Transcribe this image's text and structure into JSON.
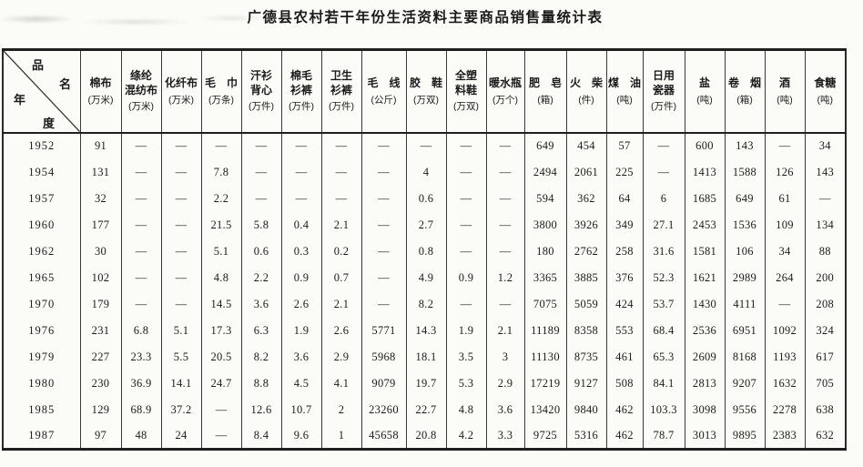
{
  "title": "广德县农村若干年份生活资料主要商品销售量统计表",
  "table": {
    "corner": {
      "top_label": "品名",
      "bottom_label": "年度"
    },
    "columns": [
      {
        "id": "cotton-cloth",
        "name_lines": [
          "棉布"
        ],
        "unit": "(万米)"
      },
      {
        "id": "polyester-blend-cloth",
        "name_lines": [
          "绦纶",
          "混纺布"
        ],
        "unit": "(万米)"
      },
      {
        "id": "chemical-fiber-cloth",
        "name_lines": [
          "化纤布"
        ],
        "unit": "(万米)"
      },
      {
        "id": "towel",
        "name_lines": [
          "毛　巾"
        ],
        "unit": "(万条)"
      },
      {
        "id": "undershirt-vest",
        "name_lines": [
          "汗衫",
          "背心"
        ],
        "unit": "(万件)"
      },
      {
        "id": "cotton-knit-suit",
        "name_lines": [
          "棉毛",
          "衫裤"
        ],
        "unit": "(万件)"
      },
      {
        "id": "sanitary-knit-suit",
        "name_lines": [
          "卫生",
          "衫裤"
        ],
        "unit": "(万件)"
      },
      {
        "id": "knitting-wool",
        "name_lines": [
          "毛　线"
        ],
        "unit": "(公斤)"
      },
      {
        "id": "rubber-shoes",
        "name_lines": [
          "胶　鞋"
        ],
        "unit": "(万双)"
      },
      {
        "id": "all-plastic-shoes",
        "name_lines": [
          "全塑",
          "料鞋"
        ],
        "unit": "(万双)"
      },
      {
        "id": "thermos-flask",
        "name_lines": [
          "暖水瓶"
        ],
        "unit": "(万个)"
      },
      {
        "id": "soap",
        "name_lines": [
          "肥　皂"
        ],
        "unit": "(箱)"
      },
      {
        "id": "matches",
        "name_lines": [
          "火　柴"
        ],
        "unit": "(件)"
      },
      {
        "id": "kerosene",
        "name_lines": [
          "煤　油"
        ],
        "unit": "(吨)"
      },
      {
        "id": "daily-porcelain",
        "name_lines": [
          "日用",
          "瓷器"
        ],
        "unit": "(万件)"
      },
      {
        "id": "salt",
        "name_lines": [
          "盐"
        ],
        "unit": "(吨)"
      },
      {
        "id": "cigarettes",
        "name_lines": [
          "卷　烟"
        ],
        "unit": "(箱)"
      },
      {
        "id": "liquor",
        "name_lines": [
          "酒"
        ],
        "unit": "(吨)"
      },
      {
        "id": "sugar",
        "name_lines": [
          "食糖"
        ],
        "unit": "(吨)"
      }
    ],
    "rows": [
      {
        "year": "1952",
        "values": [
          "91",
          "—",
          "—",
          "—",
          "—",
          "—",
          "—",
          "—",
          "—",
          "—",
          "—",
          "649",
          "454",
          "57",
          "—",
          "600",
          "143",
          "—",
          "34"
        ]
      },
      {
        "year": "1954",
        "values": [
          "131",
          "—",
          "—",
          "7.8",
          "—",
          "—",
          "—",
          "—",
          "4",
          "—",
          "—",
          "2494",
          "2061",
          "225",
          "—",
          "1413",
          "1588",
          "126",
          "143"
        ]
      },
      {
        "year": "1957",
        "values": [
          "32",
          "—",
          "—",
          "2.2",
          "—",
          "—",
          "—",
          "—",
          "0.6",
          "—",
          "—",
          "594",
          "362",
          "64",
          "6",
          "1685",
          "649",
          "61",
          "—"
        ]
      },
      {
        "year": "1960",
        "values": [
          "177",
          "—",
          "—",
          "21.5",
          "5.8",
          "0.4",
          "2.1",
          "—",
          "2.7",
          "—",
          "—",
          "3800",
          "3926",
          "349",
          "27.1",
          "2453",
          "1536",
          "109",
          "134"
        ]
      },
      {
        "year": "1962",
        "values": [
          "30",
          "—",
          "—",
          "5.1",
          "0.6",
          "0.3",
          "0.2",
          "—",
          "0.8",
          "—",
          "—",
          "180",
          "2762",
          "258",
          "31.6",
          "1581",
          "106",
          "34",
          "88"
        ]
      },
      {
        "year": "1965",
        "values": [
          "102",
          "—",
          "—",
          "4.8",
          "2.2",
          "0.9",
          "0.7",
          "—",
          "4.9",
          "0.9",
          "1.2",
          "3365",
          "3885",
          "376",
          "52.3",
          "1621",
          "2989",
          "264",
          "200"
        ]
      },
      {
        "year": "1970",
        "values": [
          "179",
          "—",
          "—",
          "14.5",
          "3.6",
          "2.6",
          "2.1",
          "—",
          "8.2",
          "—",
          "—",
          "7075",
          "5059",
          "424",
          "53.7",
          "1430",
          "4111",
          "—",
          "208"
        ]
      },
      {
        "year": "1976",
        "values": [
          "231",
          "6.8",
          "5.1",
          "17.3",
          "6.3",
          "1.9",
          "2.6",
          "5771",
          "14.3",
          "1.9",
          "2.1",
          "11189",
          "8358",
          "553",
          "68.4",
          "2536",
          "6951",
          "1092",
          "324"
        ]
      },
      {
        "year": "1979",
        "values": [
          "227",
          "23.3",
          "5.5",
          "20.5",
          "8.2",
          "3.6",
          "2.9",
          "5968",
          "18.1",
          "3.5",
          "3",
          "11130",
          "8735",
          "461",
          "65.3",
          "2609",
          "8168",
          "1193",
          "617"
        ]
      },
      {
        "year": "1980",
        "values": [
          "230",
          "36.9",
          "14.1",
          "24.7",
          "8.8",
          "4.5",
          "4.1",
          "9079",
          "19.7",
          "5.3",
          "2.9",
          "17219",
          "9127",
          "508",
          "84.1",
          "2813",
          "9207",
          "1632",
          "705"
        ]
      },
      {
        "year": "1985",
        "values": [
          "129",
          "68.9",
          "37.2",
          "—",
          "12.6",
          "10.7",
          "2",
          "23260",
          "22.7",
          "4.8",
          "3.6",
          "13420",
          "9840",
          "462",
          "103.3",
          "3098",
          "9556",
          "2278",
          "638"
        ]
      },
      {
        "year": "1987",
        "values": [
          "97",
          "48",
          "24",
          "—",
          "8.4",
          "9.6",
          "1",
          "45658",
          "20.8",
          "4.2",
          "3.3",
          "9725",
          "5316",
          "462",
          "78.7",
          "3013",
          "9895",
          "2383",
          "632"
        ]
      }
    ]
  }
}
